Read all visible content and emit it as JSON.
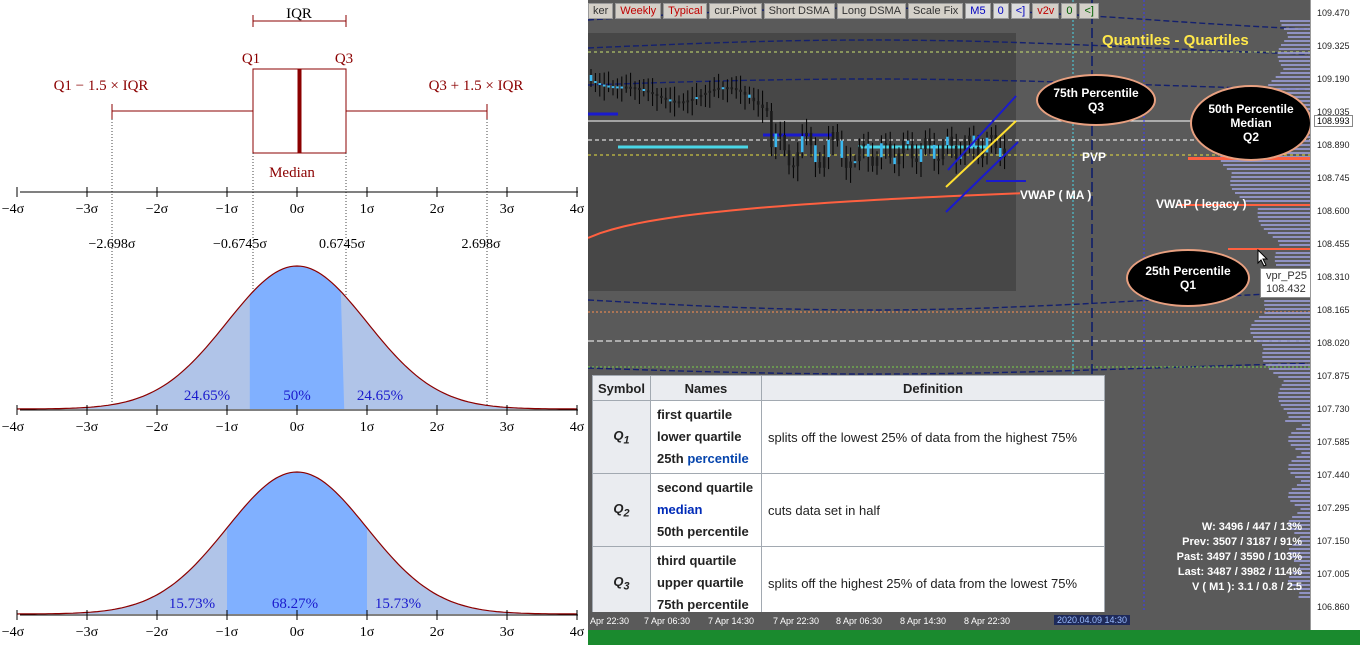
{
  "left": {
    "boxplot": {
      "iqr": "IQR",
      "q1": "Q1",
      "q3": "Q3",
      "lower_fence": "Q1 − 1.5 × IQR",
      "upper_fence": "Q3 + 1.5 × IQR",
      "median": "Median"
    },
    "axis_ticks": [
      "−4σ",
      "−3σ",
      "−2σ",
      "−1σ",
      "0σ",
      "1σ",
      "2σ",
      "3σ",
      "4σ"
    ],
    "marks": [
      "−2.698σ",
      "−0.6745σ",
      "0.6745σ",
      "2.698σ"
    ],
    "pdf1_pct": [
      "24.65%",
      "50%",
      "24.65%"
    ],
    "pdf2_pct": [
      "15.73%",
      "68.27%",
      "15.73%"
    ],
    "colors": {
      "dark_red": "#8b0000",
      "light_fill": "#b0c4e8",
      "mid_fill": "#80b0ff",
      "pct_text": "#1a1acd"
    }
  },
  "toolbar": {
    "buttons": [
      "ker",
      "Weekly",
      "Typical",
      "cur.Pivot",
      "Short DSMA",
      "Long DSMA",
      "Scale Fix",
      "M5",
      "0",
      "<]",
      "v2v",
      "0",
      "<]"
    ]
  },
  "chart": {
    "title": "Quantiles - Quartiles",
    "bubble_q3": [
      "75th Percentile",
      "Q3"
    ],
    "bubble_median": [
      "50th Percentile",
      "Median",
      "Q2"
    ],
    "bubble_q1": [
      "25th Percentile",
      "Q1"
    ],
    "pvp": "PVP",
    "vwap_ma": "VWAP ( MA )",
    "vwap_legacy": "VWAP ( legacy )",
    "tooltip": [
      "vpr_P25",
      "108.432"
    ],
    "stats": [
      "W: 3496 / 447 / 13%",
      "Prev: 3507 / 3187 / 91%",
      "Past: 3497 / 3590 / 103%",
      "Last: 3487 / 3982 / 114%",
      "V ( M1 ): 3.1 / 0.8 / 2.5"
    ],
    "price_labels": [
      "109.470",
      "109.325",
      "109.190",
      "109.035",
      "108.890",
      "108.745",
      "108.600",
      "108.455",
      "108.310",
      "108.165",
      "108.020",
      "107.875",
      "107.730",
      "107.585",
      "107.440",
      "107.295",
      "107.150",
      "107.005",
      "106.860"
    ],
    "price_highlight": "108.993",
    "time_labels": [
      "Apr 22:30",
      "7 Apr 06:30",
      "7 Apr 14:30",
      "7 Apr 22:30",
      "8 Apr 06:30",
      "8 Apr 14:30",
      "8 Apr 22:30"
    ],
    "time_highlight": "2020.04.09 14:30",
    "colors": {
      "bg": "#5a5a5a",
      "vwap": "#ff6040",
      "title": "#ffe84a",
      "channel": "#1a1acd",
      "green_bar": "#1a8a2e"
    }
  },
  "table": {
    "headers": [
      "Symbol",
      "Names",
      "Definition"
    ],
    "rows": [
      {
        "sym": "Q",
        "sub": "1",
        "n1": "first quartile",
        "n2": "lower quartile",
        "n3a": "25th ",
        "n3b": "percentile",
        "def": "splits off the lowest 25% of data from the highest 75%"
      },
      {
        "sym": "Q",
        "sub": "2",
        "n1": "second quartile",
        "n2": "median",
        "n3a": "50th percentile",
        "n3b": "",
        "def": "cuts data set in half"
      },
      {
        "sym": "Q",
        "sub": "3",
        "n1": "third quartile",
        "n2": "upper quartile",
        "n3a": "75th percentile",
        "n3b": "",
        "def": "splits off the highest 25% of data from the lowest 75%"
      }
    ]
  }
}
